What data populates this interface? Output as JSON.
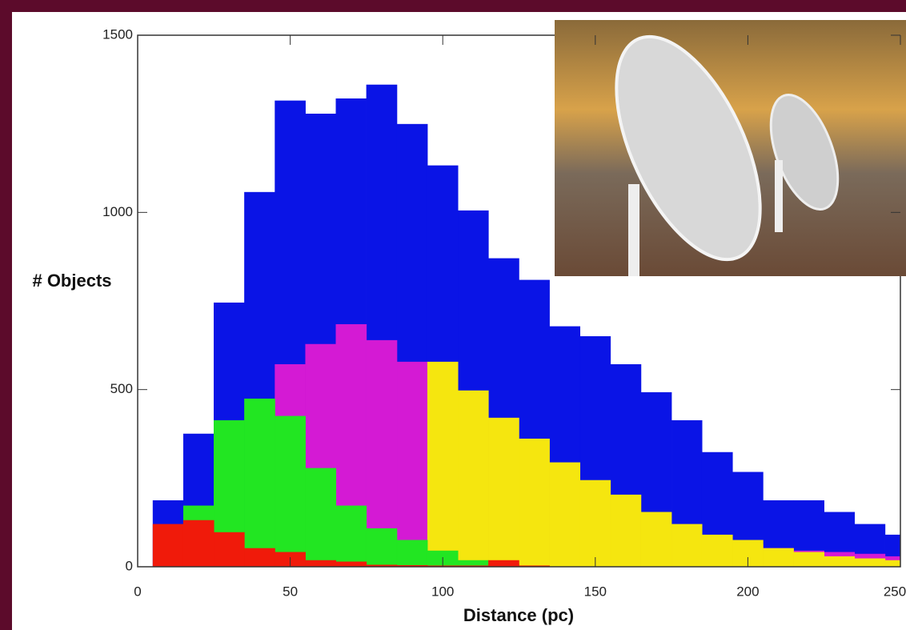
{
  "chart_data": {
    "type": "histogram",
    "xlabel": "Distance (pc)",
    "ylabel": "# Objects",
    "bins": [
      5,
      15,
      25,
      35,
      45,
      55,
      65,
      75,
      85,
      95,
      105,
      115,
      125,
      135,
      145,
      155,
      165,
      175,
      185,
      195,
      205,
      215,
      225,
      235,
      245,
      255
    ],
    "series": [
      {
        "color": "#0a14e6",
        "values": [
          187,
          375,
          745,
          1057,
          1315,
          1278,
          1321,
          1360,
          1249,
          1132,
          1005,
          870,
          809,
          678,
          650,
          571,
          492,
          413,
          323,
          267,
          187,
          187,
          154,
          120,
          90
        ]
      },
      {
        "color": "#d41ad4",
        "values": [
          0,
          10,
          20,
          40,
          571,
          628,
          684,
          639,
          578,
          520,
          402,
          289,
          221,
          187,
          131,
          120,
          86,
          75,
          63,
          63,
          52,
          45,
          41,
          36,
          29
        ]
      },
      {
        "color": "#f5e60f",
        "values": [
          0,
          0,
          0,
          0,
          0,
          0,
          0,
          0,
          0,
          578,
          497,
          420,
          361,
          294,
          244,
          203,
          154,
          120,
          90,
          75,
          52,
          41,
          29,
          23,
          18
        ]
      },
      {
        "color": "#22e622",
        "values": [
          0,
          172,
          413,
          474,
          425,
          278,
          172,
          108,
          75,
          45,
          18,
          7,
          0,
          0,
          0,
          0,
          0,
          0,
          0,
          0,
          0,
          0,
          0,
          0,
          0
        ]
      },
      {
        "color": "#f01a0a",
        "values": [
          120,
          131,
          97,
          52,
          41,
          18,
          14,
          5,
          4,
          3,
          3,
          18,
          3,
          0,
          0,
          0,
          0,
          0,
          0,
          0,
          0,
          0,
          0,
          0,
          0
        ]
      }
    ],
    "xlim": [
      0,
      250
    ],
    "ylim": [
      0,
      1500
    ],
    "xticks": [
      0,
      50,
      100,
      150,
      200,
      250
    ],
    "yticks": [
      0,
      500,
      1000,
      1500
    ]
  }
}
